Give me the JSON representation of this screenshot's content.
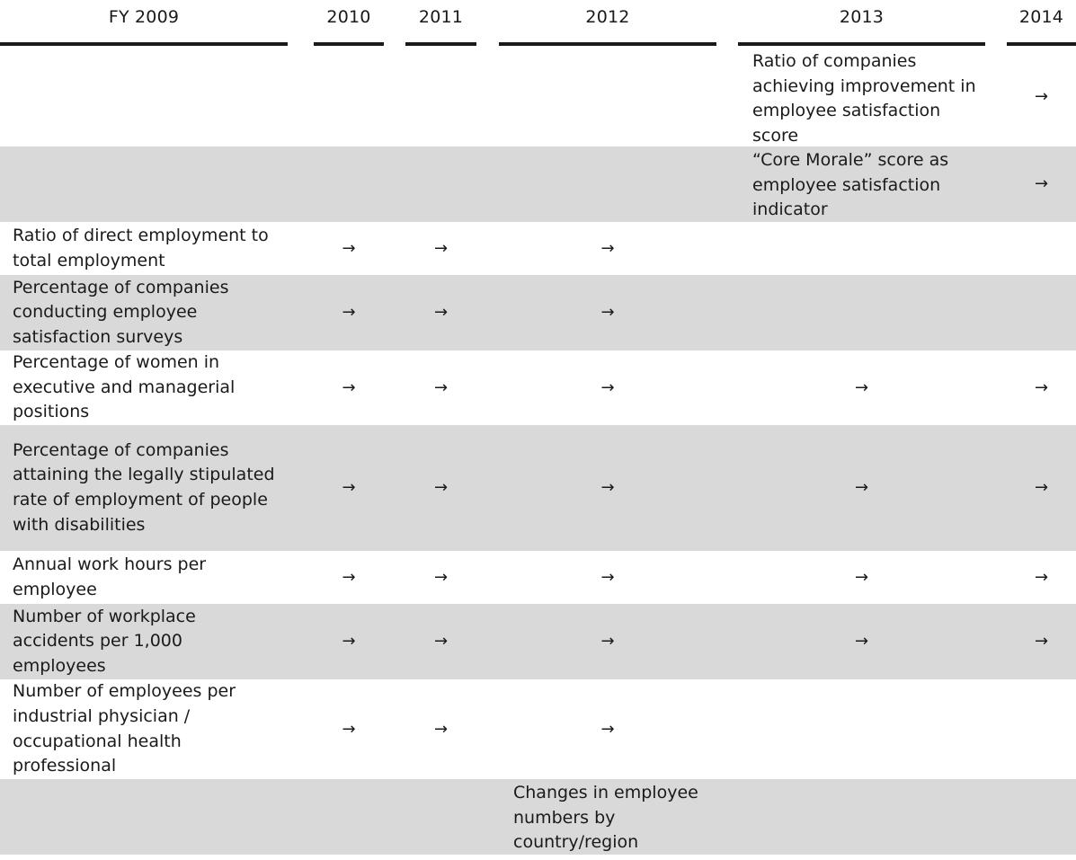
{
  "columns": [
    "FY 2009",
    "2010",
    "2011",
    "2012",
    "2013",
    "2014"
  ],
  "arrow": "→",
  "rows": [
    {
      "label": "",
      "note_2013": "Ratio of companies achieving improvement in employee satisfaction score",
      "arrows": {
        "2014": true
      }
    },
    {
      "label": "",
      "note_2013": "“Core Morale” score as employee satisfaction indicator",
      "arrows": {
        "2014": true
      }
    },
    {
      "label": "Ratio of direct employment to total employment",
      "arrows": {
        "2010": true,
        "2011": true,
        "2012": true
      }
    },
    {
      "label": "Percentage of companies conducting employee satisfaction surveys",
      "arrows": {
        "2010": true,
        "2011": true,
        "2012": true
      }
    },
    {
      "label": "Percentage of women in executive and managerial positions",
      "arrows": {
        "2010": true,
        "2011": true,
        "2012": true,
        "2013": true,
        "2014": true
      }
    },
    {
      "label": "Percentage of companies attaining the legally stipulated rate of employment of people with disabilities",
      "arrows": {
        "2010": true,
        "2011": true,
        "2012": true,
        "2013": true,
        "2014": true
      }
    },
    {
      "label": "Annual work hours per employee",
      "arrows": {
        "2010": true,
        "2011": true,
        "2012": true,
        "2013": true,
        "2014": true
      }
    },
    {
      "label": "Number of workplace accidents per 1,000 employees",
      "arrows": {
        "2010": true,
        "2011": true,
        "2012": true,
        "2013": true,
        "2014": true
      }
    },
    {
      "label": "Number of employees per industrial physician / occupational health professional",
      "arrows": {
        "2010": true,
        "2011": true,
        "2012": true
      }
    },
    {
      "label": "",
      "note_2012": "Changes in employee numbers by country/region",
      "arrows": {}
    }
  ]
}
